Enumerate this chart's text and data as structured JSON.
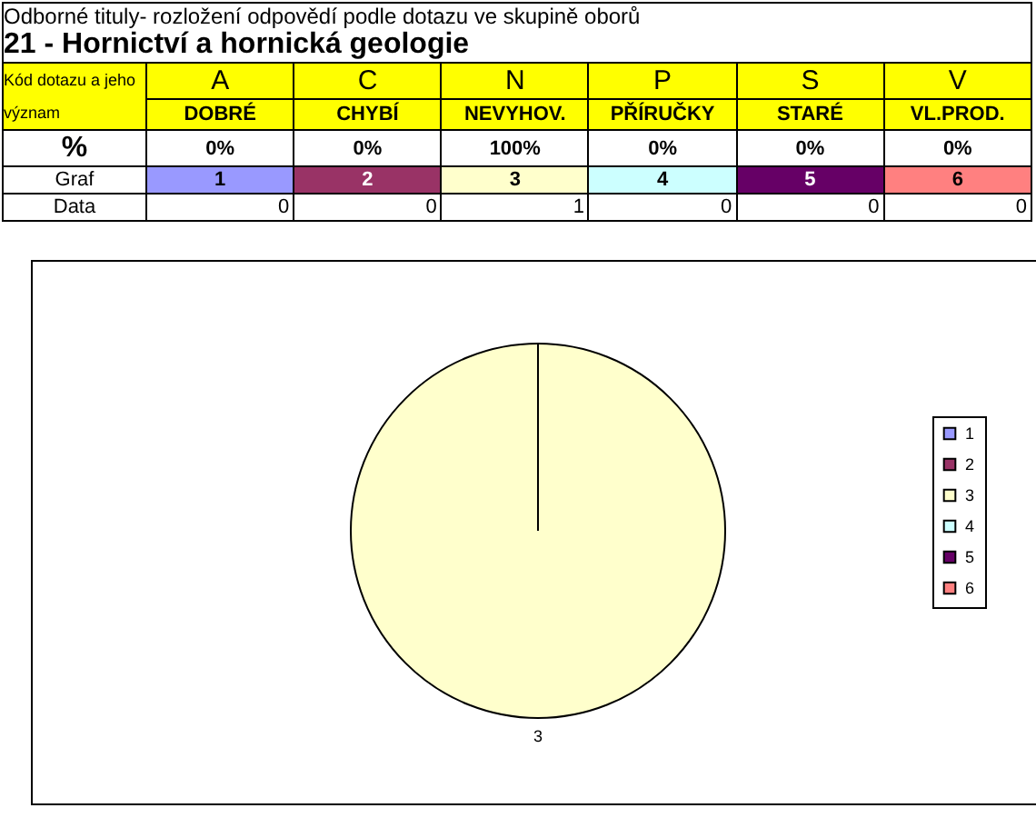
{
  "chart_data": {
    "type": "pie",
    "title": "21 - Hornictví a hornická geologie",
    "subtitle": "Odborné tituly- rozložení odpovědí podle dotazu ve skupině oborů",
    "categories": [
      "1",
      "2",
      "3",
      "4",
      "5",
      "6"
    ],
    "values": [
      0,
      0,
      1,
      0,
      0,
      0
    ],
    "colors": [
      "#9999ff",
      "#993366",
      "#ffffcc",
      "#ccffff",
      "#660066",
      "#ff8080"
    ],
    "value_labels": [
      "0",
      "0",
      "1",
      "0",
      "0",
      "0"
    ],
    "legend": "right",
    "annotations": [
      "Kód dotazu a jeho význam",
      "%",
      "Graf",
      "Data",
      "A",
      "C",
      "N",
      "P",
      "S",
      "V",
      "DOBRÉ",
      "CHYBÍ",
      "NEVYHOV.",
      "PŘÍRUČKY",
      "STARÉ",
      "VL.PROD.",
      "0%",
      "0%",
      "100%",
      "0%",
      "0%",
      "0%"
    ]
  }
}
